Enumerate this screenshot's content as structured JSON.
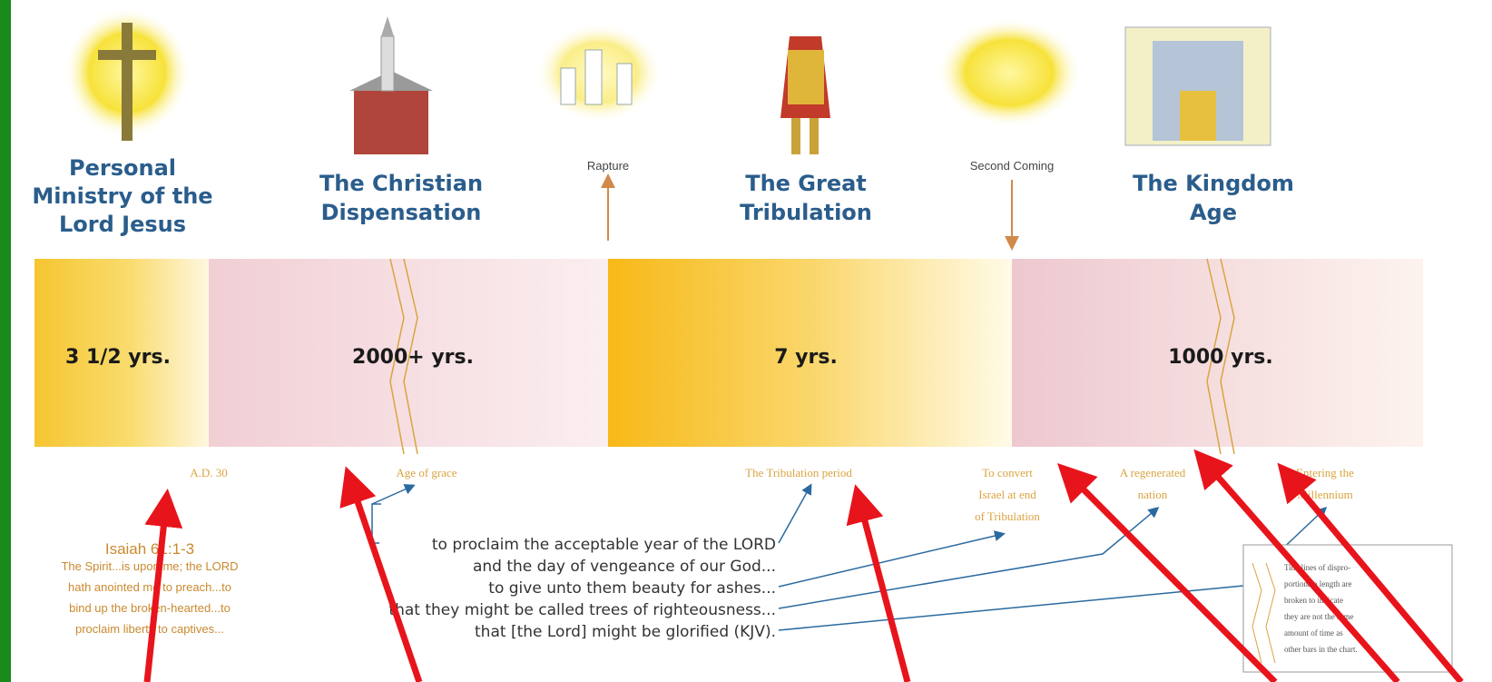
{
  "events": [
    {
      "label": "Rapture"
    },
    {
      "label": "Second Coming"
    }
  ],
  "periods": [
    {
      "title": [
        "Personal",
        "Ministry of the",
        "Lord Jesus"
      ],
      "duration": "3 1/2 yrs."
    },
    {
      "title": [
        "The Christian",
        "Dispensation"
      ],
      "duration": "2000+ yrs."
    },
    {
      "title": [
        "The Great",
        "Tribulation"
      ],
      "duration": "7 yrs."
    },
    {
      "title": [
        "The Kingdom",
        "Age"
      ],
      "duration": "1000 yrs."
    }
  ],
  "notes": [
    {
      "lines": [
        "A.D. 30"
      ]
    },
    {
      "lines": [
        "Age of grace"
      ]
    },
    {
      "lines": [
        "The Tribulation period"
      ]
    },
    {
      "lines": [
        "To convert",
        "Israel at end",
        "of Tribulation"
      ]
    },
    {
      "lines": [
        "A regenerated",
        "nation"
      ]
    },
    {
      "lines": [
        "Entering the",
        "Millennium"
      ]
    }
  ],
  "scripture": {
    "reference": "Isaiah 61:1-3",
    "lines": [
      "The Spirit...is upon me; the LORD",
      "hath anointed me to preach...to",
      "bind up the broken-hearted...to",
      "proclaim liberty to captives..."
    ]
  },
  "quote": {
    "lines": [
      "to proclaim the acceptable year of the LORD",
      "and the day of vengeance of our God...",
      "to give unto them beauty for ashes...",
      "that they might be called trees of righteousness...",
      "that [the Lord] might be glorified (KJV)."
    ]
  },
  "side_note": {
    "lines": [
      "Timelines of dispro-",
      "portionate length are",
      "broken to indicate",
      "they are not the same",
      "amount of time as",
      "other bars in the chart."
    ]
  }
}
